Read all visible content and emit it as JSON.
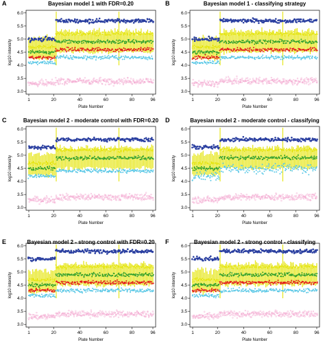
{
  "figure": {
    "panels": [
      {
        "letter": "A",
        "title": "Bayesian model 1 with FDR=0.20"
      },
      {
        "letter": "B",
        "title": "Bayesian model 1 - classifying strategy"
      },
      {
        "letter": "C",
        "title": "Bayesian model 2 - moderate control with FDR=0.20"
      },
      {
        "letter": "D",
        "title": "Bayesian model 2 - moderate control - classifying"
      },
      {
        "letter": "E",
        "title": "Bayesian model 2 - strong control with FDR=0.20"
      },
      {
        "letter": "F",
        "title": "Bayesian model 2 - strong control - classifying"
      }
    ]
  },
  "chart_data": [
    {
      "type": "scatter",
      "title": "Bayesian model 1 with FDR=0.20",
      "xlabel": "Plate Number",
      "ylabel": "log10 intensity",
      "x_ticks": [
        1,
        20,
        40,
        60,
        80,
        96
      ],
      "y_ticks": [
        3.0,
        3.5,
        4.0,
        4.5,
        5.0,
        5.5,
        6.0
      ],
      "xlim": [
        1,
        96
      ],
      "ylim": [
        2.9,
        6.1
      ],
      "series": [
        {
          "color": "#2a3fa0",
          "y_mean": [
            5.0,
            5.7
          ]
        },
        {
          "color": "#e6e61a",
          "y_mean": [
            4.7,
            5.2
          ]
        },
        {
          "color": "#33a02c",
          "y_mean": [
            4.5,
            4.9
          ]
        },
        {
          "color": "#e31a1c",
          "y_mean": [
            4.3,
            4.6
          ]
        },
        {
          "color": "#5bc8e6",
          "y_mean": [
            4.1,
            4.3
          ]
        },
        {
          "color": "#f4a6d0",
          "y_mean": [
            3.3,
            3.4
          ]
        }
      ]
    },
    {
      "type": "scatter",
      "title": "Bayesian model 1 - classifying strategy",
      "xlabel": "Plate Number",
      "ylabel": "log10 intensity",
      "x_ticks": [
        1,
        20,
        40,
        60,
        80,
        96
      ],
      "y_ticks": [
        3.0,
        3.5,
        4.0,
        4.5,
        5.0,
        5.5,
        6.0
      ],
      "xlim": [
        1,
        96
      ],
      "ylim": [
        2.9,
        6.1
      ],
      "series": [
        {
          "color": "#2a3fa0",
          "y_mean": [
            5.0,
            5.7
          ]
        },
        {
          "color": "#e6e61a",
          "y_mean": [
            4.7,
            5.2
          ]
        },
        {
          "color": "#33a02c",
          "y_mean": [
            4.5,
            4.9
          ]
        },
        {
          "color": "#e31a1c",
          "y_mean": [
            4.3,
            4.6
          ]
        },
        {
          "color": "#5bc8e6",
          "y_mean": [
            4.1,
            4.3
          ]
        },
        {
          "color": "#f4a6d0",
          "y_mean": [
            3.3,
            3.4
          ]
        }
      ]
    },
    {
      "type": "scatter",
      "title": "Bayesian model 2 - moderate control with FDR=0.20",
      "xlabel": "Plate Number",
      "ylabel": "log10 intensity",
      "x_ticks": [
        1,
        20,
        40,
        60,
        80,
        96
      ],
      "y_ticks": [
        3.0,
        3.5,
        4.0,
        4.5,
        5.0,
        5.5,
        6.0
      ],
      "xlim": [
        1,
        96
      ],
      "ylim": [
        2.9,
        6.1
      ],
      "series": [
        {
          "color": "#2a3fa0",
          "y_mean": [
            5.3,
            5.6
          ]
        },
        {
          "color": "#e6e61a",
          "y_mean": [
            4.7,
            5.2
          ]
        },
        {
          "color": "#33a02c",
          "y_mean": [
            4.5,
            4.9
          ]
        },
        {
          "color": "#5bc8e6",
          "y_mean": [
            4.2,
            4.4
          ]
        },
        {
          "color": "#f4a6d0",
          "y_mean": [
            3.3,
            3.4
          ]
        }
      ]
    },
    {
      "type": "scatter",
      "title": "Bayesian model 2 - moderate control - classifying",
      "xlabel": "Plate Number",
      "ylabel": "log10 intensity",
      "x_ticks": [
        1,
        20,
        40,
        60,
        80,
        96
      ],
      "y_ticks": [
        3.0,
        3.5,
        4.0,
        4.5,
        5.0,
        5.5,
        6.0
      ],
      "xlim": [
        1,
        96
      ],
      "ylim": [
        2.9,
        6.1
      ],
      "series": [
        {
          "color": "#2a3fa0",
          "y_mean": [
            5.3,
            5.6
          ]
        },
        {
          "color": "#e6e61a",
          "y_mean": [
            4.7,
            5.2
          ]
        },
        {
          "color": "#33a02c",
          "y_mean": [
            4.5,
            4.9
          ]
        },
        {
          "color": "#5bc8e6",
          "y_mean": [
            4.2,
            4.5
          ]
        },
        {
          "color": "#f4a6d0",
          "y_mean": [
            3.3,
            3.4
          ]
        }
      ]
    },
    {
      "type": "scatter",
      "title": "Bayesian model 2 - strong control with FDR=0.20",
      "xlabel": "Plate Number",
      "ylabel": "log10 intensity",
      "x_ticks": [
        1,
        20,
        40,
        60,
        80,
        96
      ],
      "y_ticks": [
        3.0,
        3.5,
        4.0,
        4.5,
        5.0,
        5.5,
        6.0
      ],
      "xlim": [
        1,
        96
      ],
      "ylim": [
        2.9,
        6.1
      ],
      "series": [
        {
          "color": "#2a3fa0",
          "y_mean": [
            5.5,
            5.8
          ]
        },
        {
          "color": "#e6e61a",
          "y_mean": [
            4.7,
            5.2
          ]
        },
        {
          "color": "#33a02c",
          "y_mean": [
            4.5,
            4.9
          ]
        },
        {
          "color": "#e31a1c",
          "y_mean": [
            4.3,
            4.6
          ]
        },
        {
          "color": "#5bc8e6",
          "y_mean": [
            4.1,
            4.3
          ]
        },
        {
          "color": "#f4a6d0",
          "y_mean": [
            3.3,
            3.4
          ]
        }
      ]
    },
    {
      "type": "scatter",
      "title": "Bayesian model 2 - strong control - classifying",
      "xlabel": "Plate Number",
      "ylabel": "log10 intensity",
      "x_ticks": [
        1,
        20,
        40,
        60,
        80,
        96
      ],
      "y_ticks": [
        3.0,
        3.5,
        4.0,
        4.5,
        5.0,
        5.5,
        6.0
      ],
      "xlim": [
        1,
        96
      ],
      "ylim": [
        2.9,
        6.1
      ],
      "series": [
        {
          "color": "#2a3fa0",
          "y_mean": [
            5.5,
            5.8
          ]
        },
        {
          "color": "#e6e61a",
          "y_mean": [
            4.7,
            5.2
          ]
        },
        {
          "color": "#33a02c",
          "y_mean": [
            4.5,
            4.9
          ]
        },
        {
          "color": "#e31a1c",
          "y_mean": [
            4.3,
            4.6
          ]
        },
        {
          "color": "#5bc8e6",
          "y_mean": [
            4.1,
            4.3
          ]
        },
        {
          "color": "#f4a6d0",
          "y_mean": [
            3.3,
            3.4
          ]
        }
      ]
    }
  ]
}
